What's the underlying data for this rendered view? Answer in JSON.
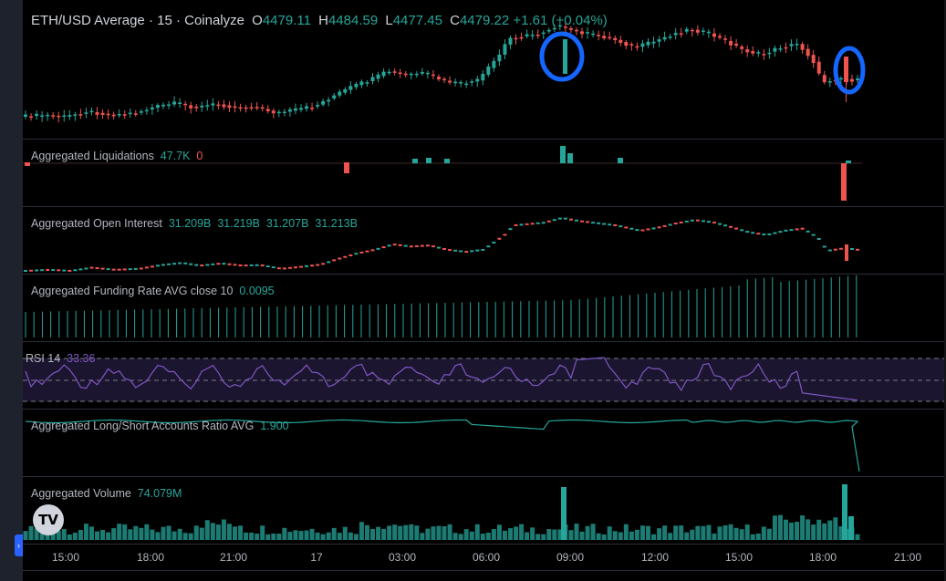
{
  "header": {
    "symbol": "ETH/USD Average",
    "interval": "15",
    "source": "Coinalyze",
    "title": "ETH/USD Average · 15 · Coinalyze",
    "open": "4479.11",
    "high": "4484.59",
    "low": "4477.45",
    "close": "4479.22",
    "change": "+1.61 (+0.04%)"
  },
  "panes": {
    "liquidations": {
      "label": "Aggregated Liquidations",
      "long": "47.7K",
      "short": "0"
    },
    "open_interest": {
      "label": "Aggregated Open Interest",
      "o": "31.209B",
      "h": "31.219B",
      "l": "31.207B",
      "c": "31.213B"
    },
    "funding": {
      "label": "Aggregated Funding Rate AVG close 10",
      "value": "0.0095"
    },
    "rsi": {
      "label": "RSI 14",
      "value": "33.36"
    },
    "long_short": {
      "label": "Aggregated Long/Short Accounts Ratio AVG",
      "value": "1.900"
    },
    "volume": {
      "label": "Aggregated Volume",
      "value": "74.079M"
    }
  },
  "logo_text": "TV",
  "time_axis": [
    "15:00",
    "18:00",
    "21:00",
    "17",
    "03:00",
    "06:00",
    "09:00",
    "12:00",
    "15:00",
    "18:00",
    "21:00"
  ],
  "colors": {
    "up": "#26a69a",
    "down": "#ef5350",
    "rsi": "#7e57c2",
    "ratio": "#26a69a",
    "annotation": "#1565ff",
    "background": "#000000"
  },
  "chart_data": [
    {
      "type": "candlestick",
      "title": "ETH/USD Average · 15 · Coinalyze",
      "x": [
        "15:00",
        "18:00",
        "21:00",
        "00:00",
        "03:00",
        "06:00",
        "09:00",
        "12:00",
        "15:00",
        "18:00"
      ],
      "close": [
        4410,
        4412,
        4418,
        4410,
        4440,
        4462,
        4470,
        4505,
        4500,
        4479
      ],
      "annotations": [
        "circled large green candle near 09:00",
        "circled red candle near 19:00"
      ]
    },
    {
      "type": "bar",
      "title": "Aggregated Liquidations",
      "series": [
        {
          "name": "long",
          "value": "47.7K"
        },
        {
          "name": "short",
          "value": "0"
        }
      ]
    },
    {
      "type": "candlestick",
      "title": "Aggregated Open Interest",
      "last": "31.213B"
    },
    {
      "type": "bar",
      "title": "Aggregated Funding Rate AVG close 10",
      "last": 0.0095
    },
    {
      "type": "line",
      "title": "RSI 14",
      "ylim": [
        0,
        100
      ],
      "levels": [
        70,
        50,
        30
      ],
      "last": 33.36
    },
    {
      "type": "line",
      "title": "Aggregated Long/Short Accounts Ratio AVG",
      "last": 1.9
    },
    {
      "type": "bar",
      "title": "Aggregated Volume",
      "last": "74.079M"
    }
  ]
}
